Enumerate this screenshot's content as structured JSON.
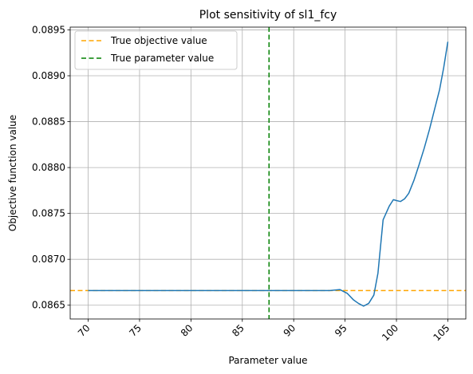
{
  "chart_data": {
    "type": "line",
    "title": "Plot sensitivity of sl1_fcy",
    "xlabel": "Parameter value",
    "ylabel": "Objective function value",
    "xlim": [
      68.25,
      106.75
    ],
    "ylim": [
      0.08635,
      0.08953
    ],
    "grid": true,
    "xticks": [
      70,
      75,
      80,
      85,
      90,
      95,
      100,
      105
    ],
    "yticks": [
      0.0865,
      0.087,
      0.0875,
      0.088,
      0.0885,
      0.089,
      0.0895
    ],
    "yticks_labels": [
      "0.0865",
      "0.0870",
      "0.0875",
      "0.0880",
      "0.0885",
      "0.0890",
      "0.0895"
    ],
    "x_tick_rotation_deg": 45,
    "legend_position": "top-left",
    "series": [
      {
        "color": "#1f77b4",
        "points": [
          [
            70,
            0.08666
          ],
          [
            75,
            0.08666
          ],
          [
            80,
            0.08666
          ],
          [
            85,
            0.08666
          ],
          [
            90,
            0.08666
          ],
          [
            93.5,
            0.08666
          ],
          [
            94.5,
            0.08667
          ],
          [
            95.2,
            0.08663
          ],
          [
            95.8,
            0.08656
          ],
          [
            96.3,
            0.08652
          ],
          [
            96.8,
            0.08649
          ],
          [
            97.3,
            0.08652
          ],
          [
            97.8,
            0.08661
          ],
          [
            98.2,
            0.08685
          ],
          [
            98.7,
            0.08743
          ],
          [
            99.3,
            0.08758
          ],
          [
            99.7,
            0.08765
          ],
          [
            100.0,
            0.08764
          ],
          [
            100.4,
            0.08763
          ],
          [
            100.8,
            0.08766
          ],
          [
            101.2,
            0.08772
          ],
          [
            101.7,
            0.08786
          ],
          [
            102.2,
            0.08803
          ],
          [
            102.7,
            0.08821
          ],
          [
            103.2,
            0.08841
          ],
          [
            103.7,
            0.08863
          ],
          [
            104.2,
            0.08885
          ],
          [
            104.6,
            0.08909
          ],
          [
            105.0,
            0.08937
          ]
        ]
      }
    ],
    "reference_lines": [
      {
        "name": "True objective value",
        "orientation": "horizontal",
        "value": 0.08666,
        "color": "#ffa500",
        "style": "dashed"
      },
      {
        "name": "True parameter value",
        "orientation": "vertical",
        "value": 87.6,
        "color": "#008000",
        "style": "dashed"
      }
    ]
  }
}
